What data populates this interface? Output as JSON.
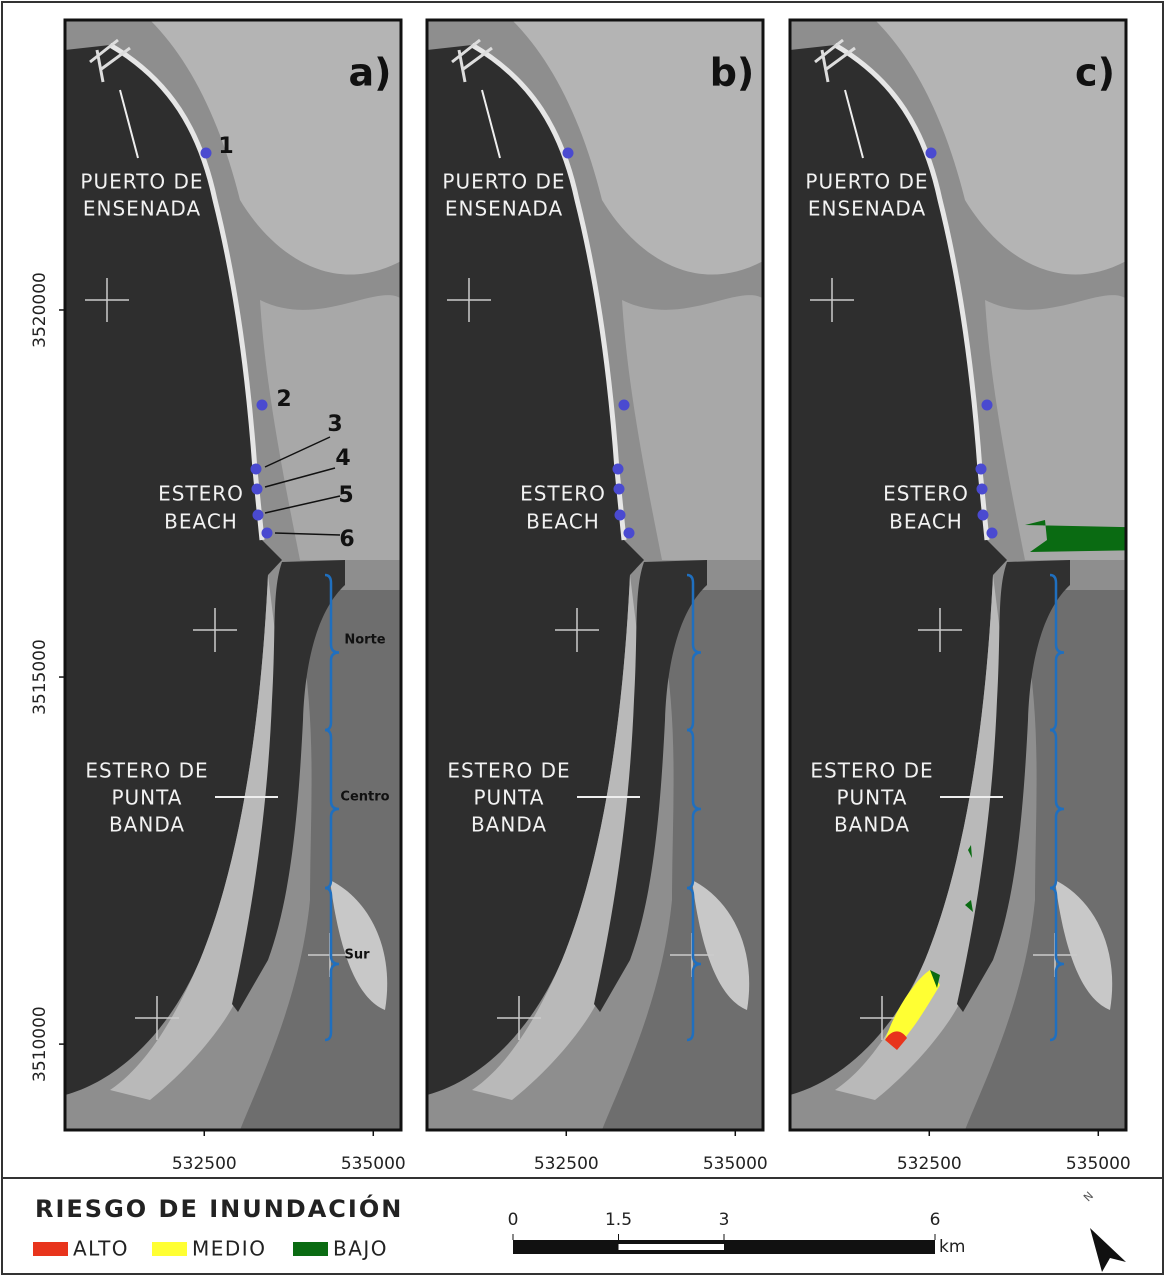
{
  "panels": [
    {
      "label": "a)",
      "port": [
        "PUERTO DE",
        "ENSENADA"
      ],
      "beach": [
        "ESTERO",
        "BEACH"
      ],
      "estuary": [
        "ESTERO DE",
        "PUNTA",
        "BANDA"
      ],
      "points": [
        "1",
        "2",
        "3",
        "4",
        "5",
        "6"
      ],
      "sections": [
        "Norte",
        "Centro",
        "Sur"
      ]
    },
    {
      "label": "b)",
      "port": [
        "PUERTO DE",
        "ENSENADA"
      ],
      "beach": [
        "ESTERO",
        "BEACH"
      ],
      "estuary": [
        "ESTERO DE",
        "PUNTA",
        "BANDA"
      ]
    },
    {
      "label": "c)",
      "port": [
        "PUERTO DE",
        "ENSENADA"
      ],
      "beach": [
        "ESTERO",
        "BEACH"
      ],
      "estuary": [
        "ESTERO DE",
        "PUNTA",
        "BANDA"
      ]
    }
  ],
  "axes": {
    "xlim": [
      530440,
      535410
    ],
    "xticks": [
      532500,
      535000
    ],
    "ylim": [
      3508830,
      3523950
    ],
    "yticks": [
      3510000,
      3515000,
      3520000
    ]
  },
  "legend": {
    "title": "RIESGO DE INUNDACIÓN",
    "items": [
      {
        "label": "ALTO",
        "color": "#e8341c"
      },
      {
        "label": "MEDIO",
        "color": "#ffff33"
      },
      {
        "label": "BAJO",
        "color": "#0a6b12"
      }
    ]
  },
  "scale_bar": {
    "ticks": [
      0,
      1.5,
      3,
      6
    ],
    "unit": "km"
  },
  "north": "N"
}
